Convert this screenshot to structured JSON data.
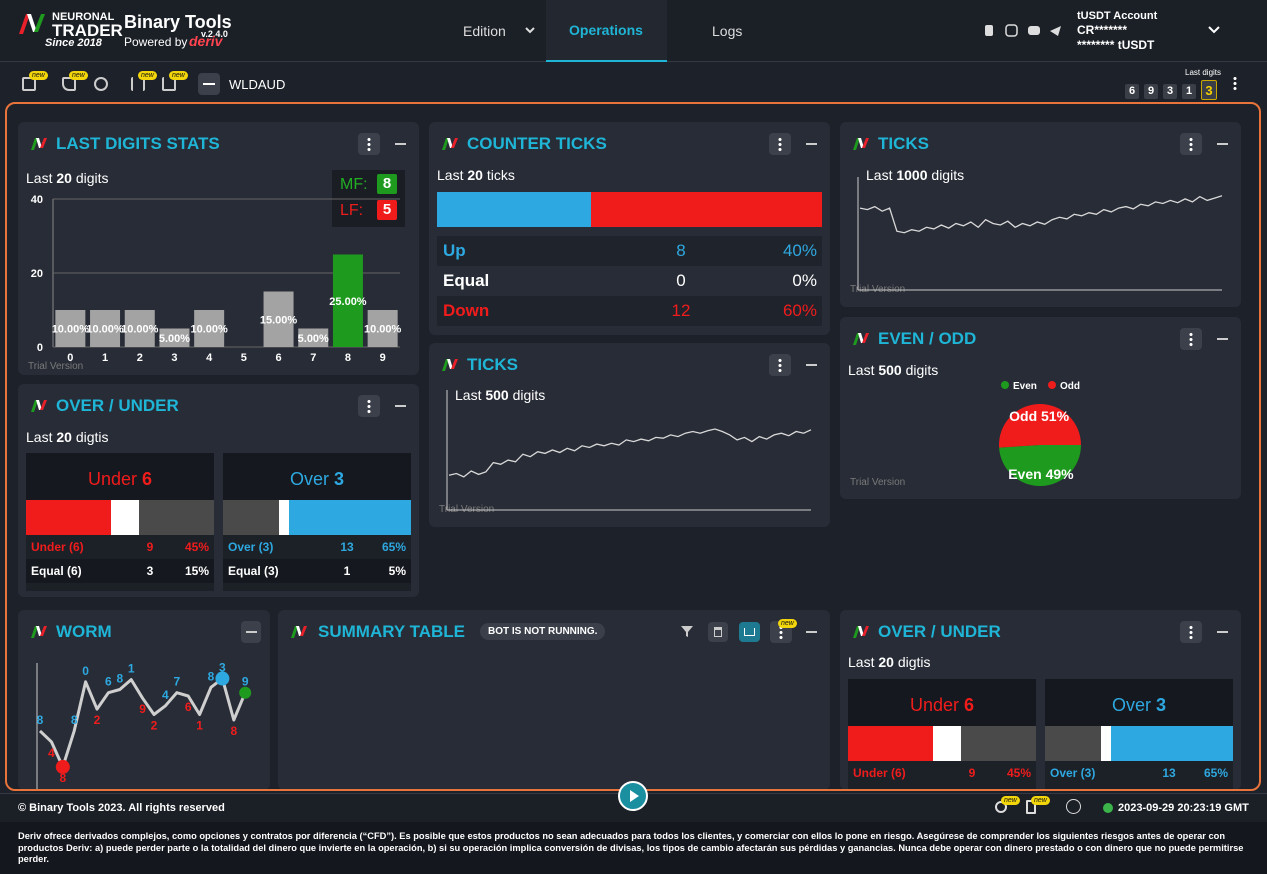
{
  "header": {
    "brand_top": "NEURONAL",
    "brand_main": "TRADER",
    "since": "Since 2018",
    "app_name": "Binary Tools",
    "version": "v.2.4.0",
    "powered_by": "Powered by",
    "partner": "deriv",
    "nav": [
      "Edition",
      "Operations",
      "Logs"
    ],
    "account_title": "tUSDT Account",
    "account_id": "CR*******",
    "balance": "******** tUSDT"
  },
  "toolbar": {
    "badges": [
      "new",
      "new",
      "new",
      "new"
    ],
    "symbol": "WLDAUD",
    "last_digits_label": "Last digits",
    "last_digits": [
      6,
      9,
      3,
      1,
      3
    ]
  },
  "digit_stats": {
    "title": "LAST DIGITS STATS",
    "label_pre": "Last",
    "count": 20,
    "label_post": "digits",
    "mf_label": "MF:",
    "mf": 8,
    "lf_label": "LF:",
    "lf": 5,
    "watermark": "Trial Version",
    "chart": {
      "type": "bar",
      "categories": [
        "0",
        "1",
        "2",
        "3",
        "4",
        "5",
        "6",
        "7",
        "8",
        "9"
      ],
      "values": [
        10,
        10,
        10,
        5,
        10,
        0,
        15,
        5,
        25,
        10
      ],
      "value_labels": [
        "10.00%",
        "10.00%",
        "10.00%",
        "5.00%",
        "10.00%",
        null,
        "15.00%",
        "5.00%",
        "25.00%",
        "10.00%"
      ],
      "color": "#a3a3a3",
      "highlight_color": "#1e9b1e",
      "ylim": [
        0,
        40
      ],
      "yticks": [
        0,
        20,
        40
      ],
      "grid": true
    }
  },
  "counter_ticks": {
    "title": "COUNTER TICKS",
    "label_pre": "Last",
    "count": 20,
    "label_post": "ticks",
    "rows": [
      {
        "label": "Up",
        "count": 8,
        "percent": "40%",
        "color": "#2ea8e0"
      },
      {
        "label": "Equal",
        "count": 0,
        "percent": "0%",
        "color": "#ffffff"
      },
      {
        "label": "Down",
        "count": 12,
        "percent": "60%",
        "color": "#f01c1c"
      }
    ]
  },
  "ticks_500": {
    "title": "TICKS",
    "label_pre": "Last",
    "count": 500,
    "label_post": "digits",
    "watermark": "Trial Version",
    "chart": {
      "type": "line",
      "color": "#d9d9d9",
      "ylim": [
        0,
        100
      ],
      "values": [
        20,
        22,
        18,
        25,
        21,
        24,
        35,
        33,
        38,
        36,
        45,
        42,
        48,
        46,
        50,
        47,
        52,
        49,
        55,
        53,
        57,
        55,
        58,
        56,
        62,
        60,
        63,
        61,
        65,
        64,
        68,
        66,
        70,
        72,
        70,
        73,
        75,
        72,
        68,
        62,
        65,
        60,
        66,
        63,
        68,
        70,
        67,
        72,
        70,
        74
      ]
    }
  },
  "ticks_1000": {
    "title": "TICKS",
    "label_pre": "Last",
    "count": 1000,
    "label_post": "digits",
    "watermark": "Trial Version",
    "chart": {
      "type": "line",
      "color": "#d9d9d9",
      "ylim": [
        0,
        100
      ],
      "values": [
        70,
        68,
        72,
        66,
        70,
        40,
        38,
        42,
        40,
        45,
        43,
        48,
        44,
        50,
        47,
        52,
        45,
        55,
        50,
        48,
        53,
        45,
        50,
        47,
        52,
        49,
        55,
        58,
        56,
        62,
        60,
        64,
        62,
        68,
        65,
        70,
        72,
        69,
        75,
        73,
        78,
        76,
        80,
        77,
        82,
        78,
        85,
        80,
        83,
        86
      ]
    }
  },
  "even_odd": {
    "title": "EVEN / ODD",
    "label_pre": "Last",
    "count": 500,
    "label_post": "digits",
    "watermark": "Trial Version",
    "chart": {
      "type": "pie",
      "categories": [
        "Even",
        "Odd"
      ],
      "values": [
        49,
        51
      ],
      "value_labels": [
        "Even 49%",
        "Odd 51%"
      ],
      "colors": [
        "#1e9b1e",
        "#f01c1c"
      ]
    }
  },
  "over_under": [
    {
      "title": "OVER / UNDER",
      "label_pre": "Last",
      "count": 20,
      "label_post": "digtis",
      "boxes": [
        {
          "name": "Under",
          "barrier": 6,
          "color": "#f01c1c",
          "segments": [
            {
              "color": "#f01c1c",
              "value": 45
            },
            {
              "color": "#ffffff",
              "value": 15
            },
            {
              "color": "#4a4a4a",
              "value": 40
            }
          ],
          "rows": [
            {
              "label": "Under (6)",
              "count": 9,
              "percent": "45%",
              "color": "#f01c1c"
            },
            {
              "label": "Equal (6)",
              "count": 3,
              "percent": "15%",
              "color": "#ffffff"
            }
          ]
        },
        {
          "name": "Over",
          "barrier": 3,
          "color": "#2ea8e0",
          "segments": [
            {
              "color": "#4a4a4a",
              "value": 30
            },
            {
              "color": "#ffffff",
              "value": 5
            },
            {
              "color": "#2ea8e0",
              "value": 65
            }
          ],
          "rows": [
            {
              "label": "Over (3)",
              "count": 13,
              "percent": "65%",
              "color": "#2ea8e0"
            },
            {
              "label": "Equal (3)",
              "count": 1,
              "percent": "5%",
              "color": "#ffffff"
            }
          ]
        }
      ]
    },
    {
      "title": "OVER / UNDER",
      "label_pre": "Last",
      "count": 20,
      "label_post": "digtis",
      "boxes": [
        {
          "name": "Under",
          "barrier": 6,
          "color": "#f01c1c",
          "segments": [
            {
              "color": "#f01c1c",
              "value": 45
            },
            {
              "color": "#ffffff",
              "value": 15
            },
            {
              "color": "#4a4a4a",
              "value": 40
            }
          ],
          "rows": [
            {
              "label": "Under (6)",
              "count": 9,
              "percent": "45%",
              "color": "#f01c1c"
            }
          ]
        },
        {
          "name": "Over",
          "barrier": 3,
          "color": "#2ea8e0",
          "segments": [
            {
              "color": "#4a4a4a",
              "value": 30
            },
            {
              "color": "#ffffff",
              "value": 5
            },
            {
              "color": "#2ea8e0",
              "value": 65
            }
          ],
          "rows": [
            {
              "label": "Over (3)",
              "count": 13,
              "percent": "65%",
              "color": "#2ea8e0"
            }
          ]
        }
      ]
    }
  ],
  "worm": {
    "title": "WORM",
    "chart": {
      "type": "line",
      "values": [
        65,
        55,
        32,
        65,
        110,
        85,
        100,
        103,
        112,
        95,
        80,
        88,
        100,
        97,
        80,
        105,
        113,
        75,
        100
      ],
      "digits": [
        8,
        4,
        8,
        8,
        0,
        2,
        6,
        8,
        1,
        9,
        2,
        4,
        7,
        6,
        1,
        8,
        3,
        8,
        9
      ],
      "ylim": [
        20,
        130
      ],
      "color": "#cfcfcf",
      "up_color": "#2ea8e0",
      "down_color": "#f01c1c",
      "last_color": "#1e9b1e"
    }
  },
  "summary": {
    "title": "SUMMARY TABLE",
    "status": "BOT IS NOT RUNNING.",
    "badge": "new"
  },
  "footer": {
    "copyright": "© Binary Tools 2023. All rights reserved",
    "badges": [
      "new",
      "new"
    ],
    "datetime": "2023-09-29 20:23:19 GMT",
    "disclaimer": "Deriv ofrece derivados complejos, como opciones y contratos por diferencia (“CFD”). Es posible que estos productos no sean adecuados para todos los clientes, y comerciar con ellos lo pone en riesgo. Asegúrese de comprender los siguientes riesgos antes de operar con productos Deriv: a) puede perder parte o la totalidad del dinero que invierte en la operación, b) si su operación implica conversión de divisas, los tipos de cambio afectarán sus pérdidas y ganancias. Nunca debe operar con dinero prestado o con dinero que no puede permitirse perder."
  }
}
